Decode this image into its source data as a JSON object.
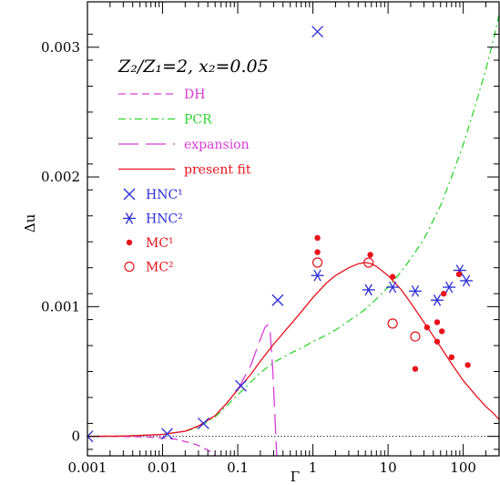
{
  "chart_data": {
    "type": "scatter",
    "title": "Z₂/Z₁=2, x₂=0.05",
    "xlabel": "Γ",
    "ylabel": "Δu",
    "x_scale": "log",
    "xlim": [
      0.001,
      300
    ],
    "ylim": [
      -0.00015,
      0.00335
    ],
    "x_ticks": [
      0.001,
      0.01,
      0.1,
      1,
      10,
      100
    ],
    "x_tick_labels": [
      "0.001",
      "0.01",
      "0.1",
      "1",
      "10",
      "100"
    ],
    "y_ticks": [
      0,
      0.001,
      0.002,
      0.003
    ],
    "y_tick_labels": [
      "0",
      "0.001",
      "0.002",
      "0.003"
    ],
    "legend_position": "upper-left",
    "colors": {
      "blue": "#2b2bd8",
      "red": "#e8121b",
      "green": "#2fd62f",
      "magenta": "#d63cd6"
    },
    "series": [
      {
        "name": "DH",
        "kind": "line",
        "style": "short-dash",
        "color": "#d63cd6",
        "x": [
          0.001,
          0.003,
          0.006,
          0.01,
          0.015,
          0.02,
          0.025,
          0.03,
          0.035,
          0.04,
          0.045,
          0.05
        ],
        "y": [
          0,
          -1e-06,
          -5e-06,
          -1.2e-05,
          -2.2e-05,
          -4e-05,
          -5.5e-05,
          -7e-05,
          -9e-05,
          -0.000105,
          -0.000125,
          -0.00015
        ]
      },
      {
        "name": "PCR",
        "kind": "line",
        "style": "dash-dot",
        "color": "#2fd62f",
        "x": [
          0.001,
          0.003,
          0.01,
          0.02,
          0.03,
          0.05,
          0.07,
          0.1,
          0.15,
          0.2,
          0.3,
          0.5,
          0.7,
          1,
          1.5,
          2,
          3,
          5,
          7,
          10,
          15,
          20,
          30,
          50,
          70,
          100,
          150,
          200,
          250,
          300
        ],
        "y": [
          0,
          2e-06,
          1.5e-05,
          4e-05,
          7e-05,
          0.00015,
          0.00023,
          0.00032,
          0.00042,
          0.00049,
          0.00057,
          0.00064,
          0.00068,
          0.00073,
          0.00078,
          0.00082,
          0.00089,
          0.00098,
          0.00106,
          0.00115,
          0.00127,
          0.00137,
          0.00152,
          0.00178,
          0.002,
          0.00225,
          0.00258,
          0.00283,
          0.00305,
          0.00325
        ]
      },
      {
        "name": "expansion",
        "kind": "line",
        "style": "long-dash",
        "color": "#d63cd6",
        "x": [
          0.001,
          0.003,
          0.01,
          0.02,
          0.03,
          0.05,
          0.07,
          0.1,
          0.15,
          0.2,
          0.23,
          0.25,
          0.27,
          0.29,
          0.31,
          0.33
        ],
        "y": [
          0,
          2e-06,
          1.5e-05,
          4e-05,
          8e-05,
          0.00016,
          0.00025,
          0.00036,
          0.00055,
          0.00075,
          0.00084,
          0.00086,
          0.0008,
          0.00055,
          0.0002,
          -0.00015
        ]
      },
      {
        "name": "present fit",
        "kind": "line",
        "style": "solid",
        "color": "#e8121b",
        "x": [
          0.001,
          0.003,
          0.01,
          0.02,
          0.03,
          0.05,
          0.07,
          0.1,
          0.15,
          0.2,
          0.3,
          0.5,
          0.7,
          1,
          1.5,
          2,
          3,
          4,
          5,
          6,
          7,
          10,
          15,
          20,
          30,
          50,
          70,
          100,
          150,
          200,
          250,
          300
        ],
        "y": [
          0,
          2e-06,
          1.5e-05,
          4e-05,
          8e-05,
          0.00016,
          0.00025,
          0.00036,
          0.00048,
          0.00058,
          0.00071,
          0.00086,
          0.00096,
          0.00107,
          0.00118,
          0.00124,
          0.0013,
          0.00133,
          0.00134,
          0.00133,
          0.00131,
          0.00124,
          0.00113,
          0.00103,
          0.00088,
          0.00069,
          0.00056,
          0.00043,
          0.00031,
          0.00023,
          0.00018,
          0.00013
        ]
      },
      {
        "name": "HNC¹",
        "kind": "marker",
        "marker": "x",
        "color": "#2b2bd8",
        "x": [
          0.001,
          0.0115,
          0.035,
          0.11,
          0.34,
          1.15
        ],
        "y": [
          0,
          2e-05,
          0.0001,
          0.00039,
          0.00105,
          0.00312
        ]
      },
      {
        "name": "HNC²",
        "kind": "marker",
        "marker": "asterisk",
        "color": "#2b2bd8",
        "x": [
          1.15,
          5.5,
          11.5,
          23,
          45,
          65,
          90,
          110
        ],
        "y": [
          0.00124,
          0.00113,
          0.00115,
          0.00112,
          0.00105,
          0.00115,
          0.00128,
          0.0012
        ]
      },
      {
        "name": "MC¹",
        "kind": "marker",
        "marker": "dot",
        "color": "#e8121b",
        "x": [
          1.15,
          1.15,
          5.8,
          11.5,
          23,
          33,
          45,
          45,
          52,
          55,
          70,
          88,
          115
        ],
        "y": [
          0.00153,
          0.00142,
          0.0014,
          0.00123,
          0.00052,
          0.00084,
          0.00088,
          0.00073,
          0.00081,
          0.0011,
          0.00061,
          0.00125,
          0.00055
        ]
      },
      {
        "name": "MC²",
        "kind": "marker",
        "marker": "circle",
        "color": "#e8121b",
        "x": [
          1.15,
          5.5,
          11.5,
          23
        ],
        "y": [
          0.00134,
          0.00134,
          0.00087,
          0.00077
        ]
      }
    ]
  }
}
